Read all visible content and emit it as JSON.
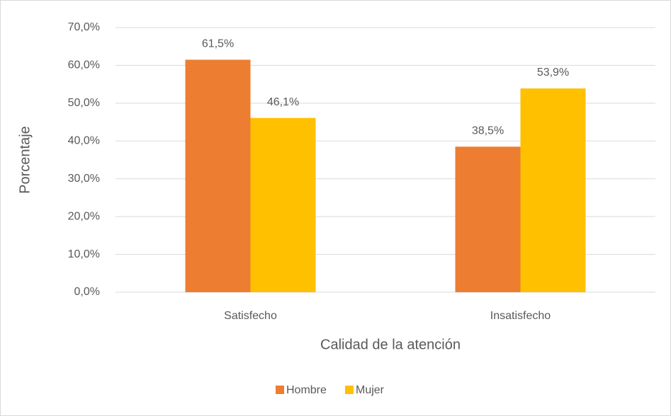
{
  "chart_data": {
    "type": "bar",
    "xlabel": "Calidad de la atención",
    "ylabel": "Porcentaje",
    "categories": [
      "Satisfecho",
      "Insatisfecho"
    ],
    "series": [
      {
        "name": "Hombre",
        "color": "#ED7D31",
        "values": [
          61.5,
          38.5
        ],
        "value_labels": [
          "61,5%",
          "38,5%"
        ]
      },
      {
        "name": "Mujer",
        "color": "#FFC000",
        "values": [
          46.1,
          53.9
        ],
        "value_labels": [
          "46,1%",
          "53,9%"
        ]
      }
    ],
    "ylim": [
      0,
      70
    ],
    "yticks": [
      {
        "value": 0,
        "label": "0,0%"
      },
      {
        "value": 10,
        "label": "10,0%"
      },
      {
        "value": 20,
        "label": "20,0%"
      },
      {
        "value": 30,
        "label": "30,0%"
      },
      {
        "value": 40,
        "label": "40,0%"
      },
      {
        "value": 50,
        "label": "50,0%"
      },
      {
        "value": 60,
        "label": "60,0%"
      },
      {
        "value": 70,
        "label": "70,0%"
      }
    ],
    "grid": true,
    "legend": "bottom"
  }
}
